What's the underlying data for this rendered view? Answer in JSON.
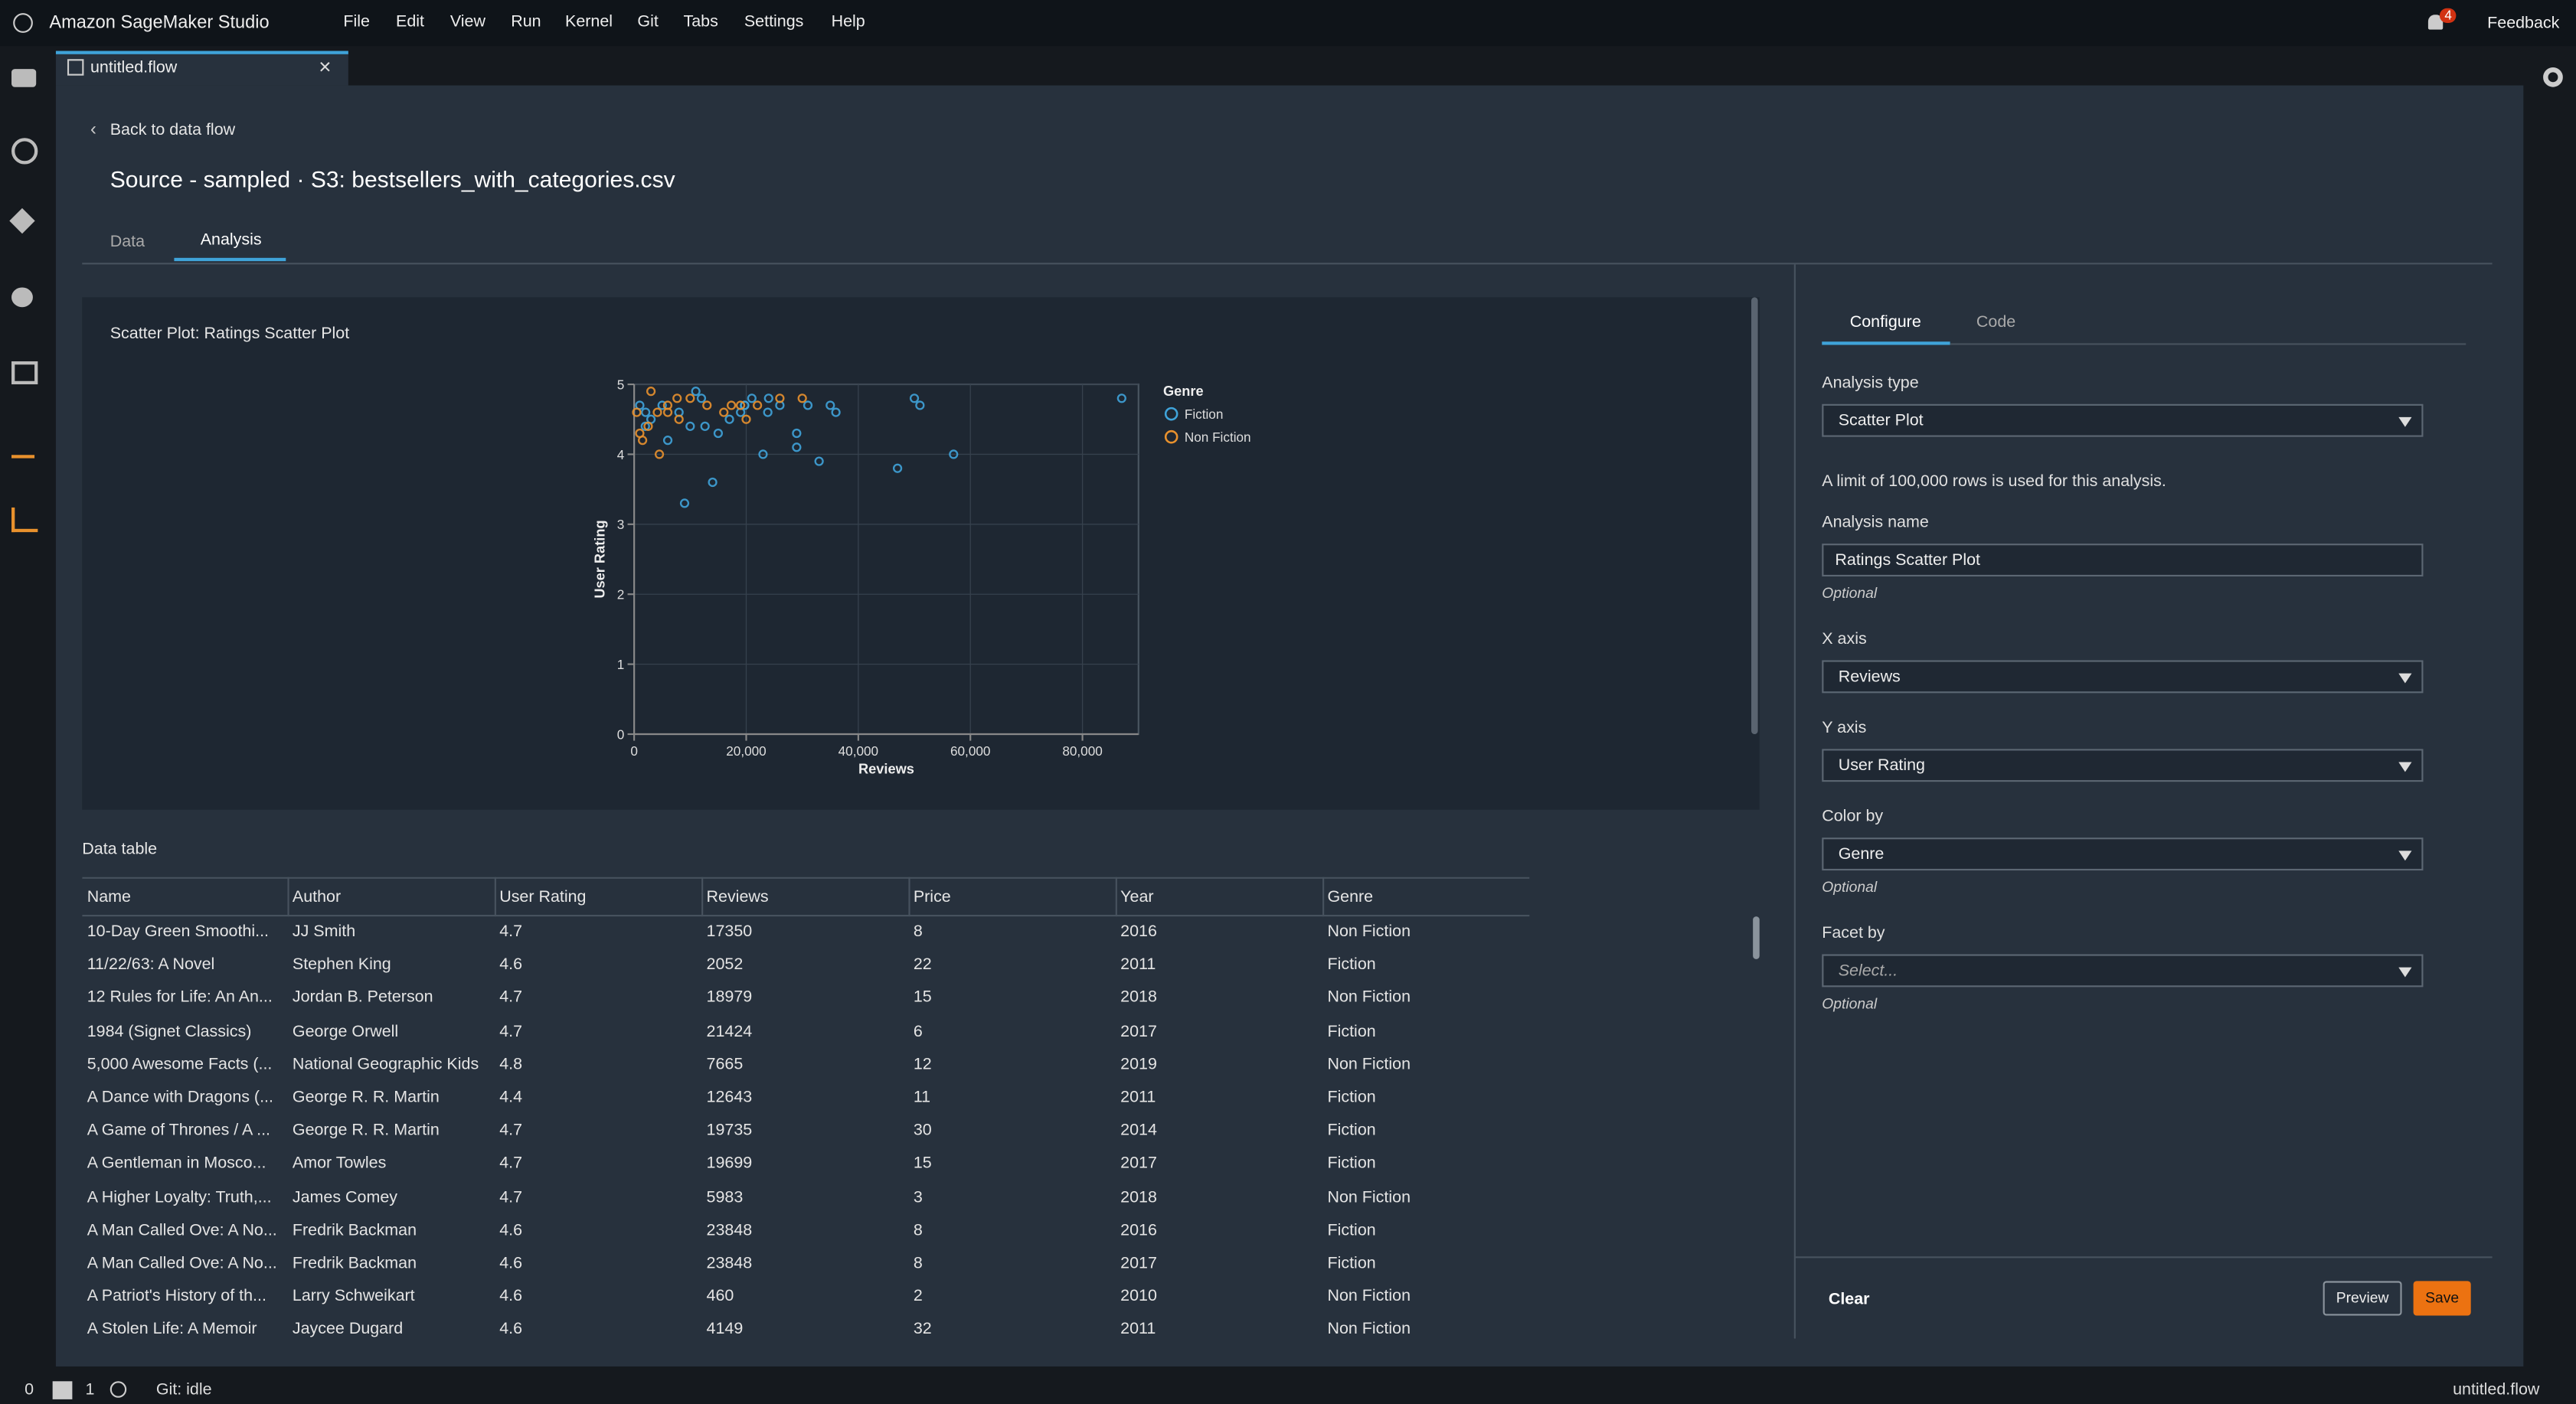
{
  "app": {
    "title": "Amazon SageMaker Studio",
    "menu": [
      "File",
      "Edit",
      "View",
      "Run",
      "Kernel",
      "Git",
      "Tabs",
      "Settings",
      "Help"
    ],
    "notifications": 4,
    "feedback": "Feedback"
  },
  "tab": {
    "title": "untitled.flow"
  },
  "page": {
    "back": "Back to data flow",
    "heading": "Source - sampled · S3: bestsellers_with_categories.csv",
    "tabs": [
      "Data",
      "Analysis"
    ]
  },
  "chart_panel": {
    "title": "Scatter Plot: Ratings Scatter Plot"
  },
  "chart_data": {
    "type": "scatter",
    "x_label": "Reviews",
    "y_label": "User Rating",
    "legend_title": "Genre",
    "grid": true,
    "xlim": [
      0,
      90000
    ],
    "xticks": [
      0,
      {
        "value": 20000,
        "label": "20,000"
      },
      {
        "value": 40000,
        "label": "40,000"
      },
      {
        "value": 60000,
        "label": "60,000"
      },
      {
        "value": 80000,
        "label": "80,000"
      }
    ],
    "ylim": [
      0,
      5
    ],
    "yticks": [
      0,
      1,
      2,
      3,
      4,
      5
    ],
    "series": [
      {
        "name": "Fiction",
        "color": "#3fa3d9",
        "x": [
          87000,
          50000,
          51000,
          57000,
          47000,
          33000,
          29000,
          29000,
          23000,
          14000,
          9000,
          35000,
          36000,
          31000,
          26000,
          21000,
          19000,
          17000,
          12000,
          8000,
          5000,
          3000,
          2000,
          6000,
          1000,
          2052,
          19735,
          19699,
          23848,
          12643,
          15000,
          10000,
          11000,
          24000
        ],
        "y": [
          4.8,
          4.8,
          4.7,
          4.0,
          3.8,
          3.9,
          4.3,
          4.1,
          4.0,
          3.6,
          3.3,
          4.7,
          4.6,
          4.7,
          4.7,
          4.8,
          4.6,
          4.5,
          4.8,
          4.6,
          4.7,
          4.5,
          4.4,
          4.2,
          4.7,
          4.6,
          4.7,
          4.7,
          4.6,
          4.4,
          4.3,
          4.4,
          4.9,
          4.8
        ]
      },
      {
        "name": "Non Fiction",
        "color": "#e8912d",
        "x": [
          17350,
          18979,
          7665,
          5983,
          460,
          4149,
          4500,
          1500,
          2500,
          8000,
          13000,
          16000,
          22000,
          26000,
          30000,
          10000,
          3000,
          6000,
          20000,
          1000
        ],
        "y": [
          4.7,
          4.7,
          4.8,
          4.7,
          4.6,
          4.6,
          4.0,
          4.2,
          4.4,
          4.5,
          4.7,
          4.6,
          4.7,
          4.8,
          4.8,
          4.8,
          4.9,
          4.6,
          4.5,
          4.3
        ]
      }
    ]
  },
  "table": {
    "title": "Data table",
    "columns": [
      "Name",
      "Author",
      "User Rating",
      "Reviews",
      "Price",
      "Year",
      "Genre"
    ],
    "rows": [
      [
        "10-Day Green Smoothi...",
        "JJ Smith",
        4.7,
        17350,
        8,
        2016,
        "Non Fiction"
      ],
      [
        "11/22/63: A Novel",
        "Stephen King",
        4.6,
        2052,
        22,
        2011,
        "Fiction"
      ],
      [
        "12 Rules for Life: An An...",
        "Jordan B. Peterson",
        4.7,
        18979,
        15,
        2018,
        "Non Fiction"
      ],
      [
        "1984 (Signet Classics)",
        "George Orwell",
        4.7,
        21424,
        6,
        2017,
        "Fiction"
      ],
      [
        "5,000 Awesome Facts (...",
        "National Geographic Kids",
        4.8,
        7665,
        12,
        2019,
        "Non Fiction"
      ],
      [
        "A Dance with Dragons (...",
        "George R. R. Martin",
        4.4,
        12643,
        11,
        2011,
        "Fiction"
      ],
      [
        "A Game of Thrones / A ...",
        "George R. R. Martin",
        4.7,
        19735,
        30,
        2014,
        "Fiction"
      ],
      [
        "A Gentleman in Mosco...",
        "Amor Towles",
        4.7,
        19699,
        15,
        2017,
        "Fiction"
      ],
      [
        "A Higher Loyalty: Truth,...",
        "James Comey",
        4.7,
        5983,
        3,
        2018,
        "Non Fiction"
      ],
      [
        "A Man Called Ove: A No...",
        "Fredrik Backman",
        4.6,
        23848,
        8,
        2016,
        "Fiction"
      ],
      [
        "A Man Called Ove: A No...",
        "Fredrik Backman",
        4.6,
        23848,
        8,
        2017,
        "Fiction"
      ],
      [
        "A Patriot's History of th...",
        "Larry Schweikart",
        4.6,
        460,
        2,
        2010,
        "Non Fiction"
      ],
      [
        "A Stolen Life: A Memoir",
        "Jaycee Dugard",
        4.6,
        4149,
        32,
        2011,
        "Non Fiction"
      ]
    ]
  },
  "config": {
    "tabs": [
      "Configure",
      "Code"
    ],
    "analysis_type_label": "Analysis type",
    "analysis_type": "Scatter Plot",
    "limit_note": "A limit of 100,000 rows is used for this analysis.",
    "analysis_name_label": "Analysis name",
    "analysis_name": "Ratings Scatter Plot",
    "optional": "Optional",
    "x_axis_label": "X axis",
    "x_axis": "Reviews",
    "y_axis_label": "Y axis",
    "y_axis": "User Rating",
    "color_by_label": "Color by",
    "color_by": "Genre",
    "facet_by_label": "Facet by",
    "facet_by_placeholder": "Select...",
    "clear": "Clear",
    "preview": "Preview",
    "save": "Save"
  },
  "status": {
    "left_count": 0,
    "terminals": 1,
    "git": "Git: idle",
    "file": "untitled.flow"
  }
}
